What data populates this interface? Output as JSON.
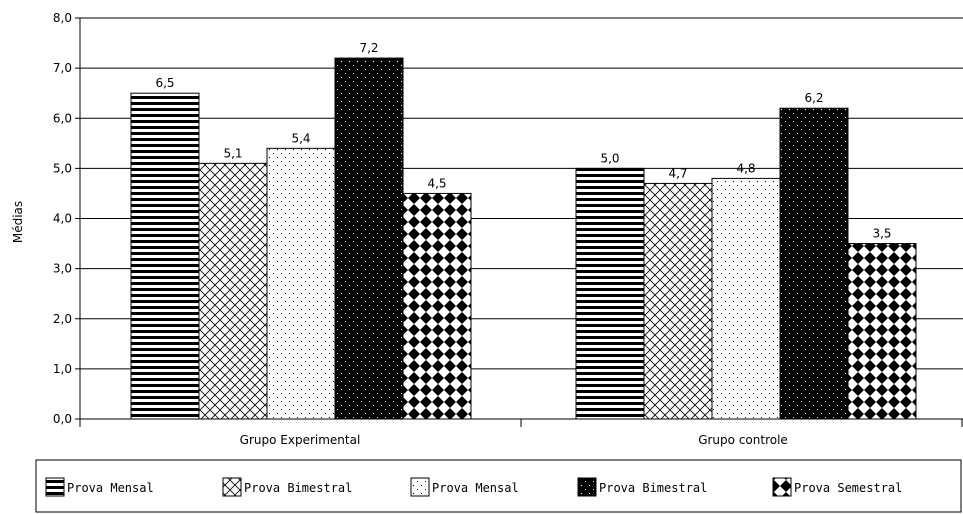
{
  "chart_data": {
    "type": "bar",
    "title": "",
    "xlabel": "",
    "ylabel": "Médias",
    "ylim": [
      0,
      8
    ],
    "y_ticks": [
      "0,0",
      "1,0",
      "2,0",
      "3,0",
      "4,0",
      "5,0",
      "6,0",
      "7,0",
      "8,0"
    ],
    "grid": true,
    "legend_position": "bottom",
    "categories": [
      "Grupo Experimental",
      "Grupo controle"
    ],
    "series": [
      {
        "name": "Prova Mensal",
        "pattern": "horizontal-stripes",
        "values": [
          6.5,
          5.0
        ],
        "labels": [
          "6,5",
          "5,0"
        ]
      },
      {
        "name": "Prova Bimestral",
        "pattern": "crosshatch",
        "values": [
          5.1,
          4.7
        ],
        "labels": [
          "5,1",
          "4,7"
        ]
      },
      {
        "name": "Prova Mensal",
        "pattern": "sparse-dots",
        "values": [
          5.4,
          4.8
        ],
        "labels": [
          "5,4",
          "4,8"
        ]
      },
      {
        "name": "Prova Bimestral",
        "pattern": "black-dots",
        "values": [
          7.2,
          6.2
        ],
        "labels": [
          "7,2",
          "6,2"
        ]
      },
      {
        "name": "Prova Semestral",
        "pattern": "diamonds",
        "values": [
          4.5,
          3.5
        ],
        "labels": [
          "4,5",
          "3,5"
        ]
      }
    ],
    "colors": {
      "ink": "#000000",
      "paper": "#ffffff"
    }
  }
}
